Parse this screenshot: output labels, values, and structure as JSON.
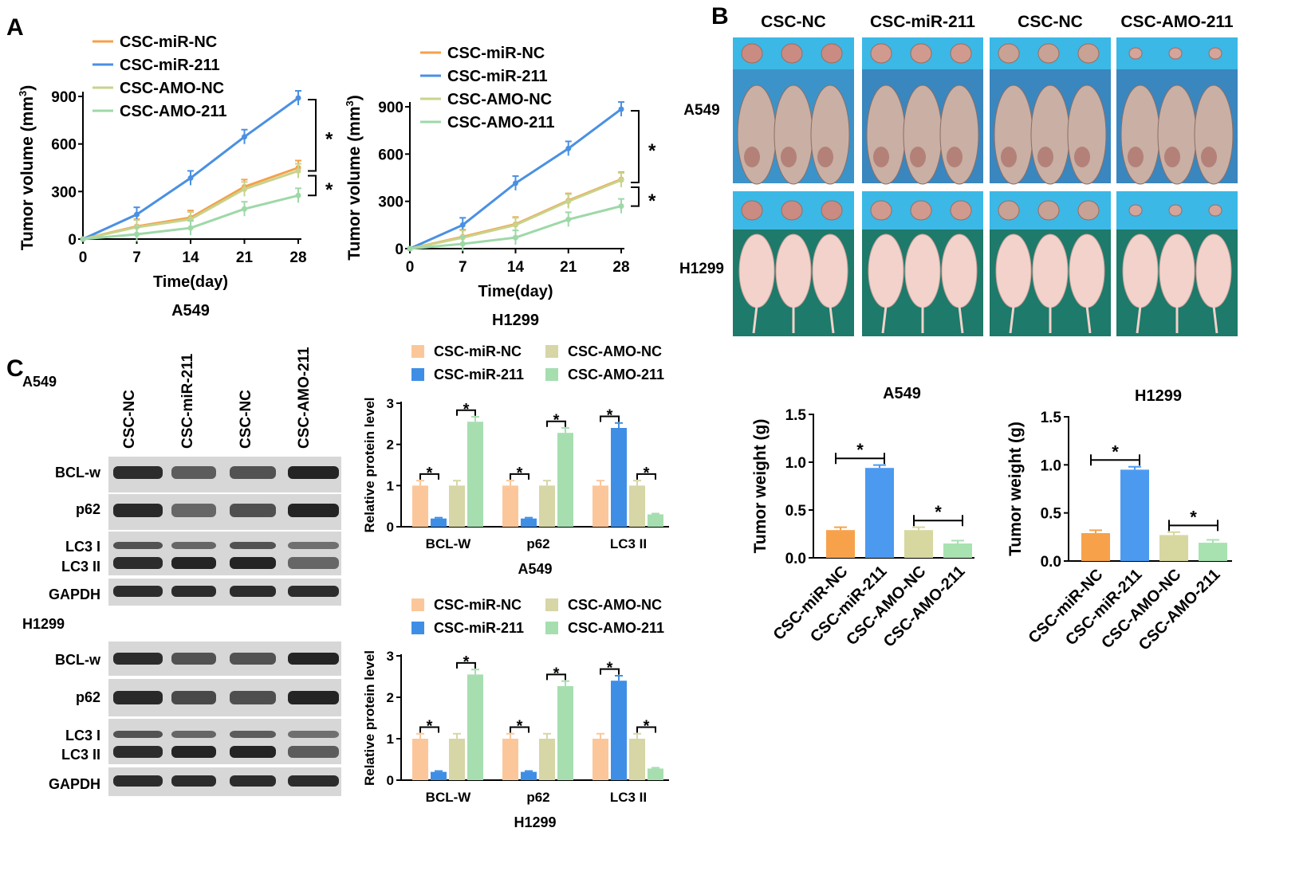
{
  "panels": {
    "a": "A",
    "b": "B",
    "c": "C"
  },
  "colors": {
    "miR_NC": "#F5A04A",
    "miR_211": "#4A90E2",
    "AMO_NC": "#C8D38C",
    "AMO_211": "#9ED8A8",
    "bar_miR_NC": "#FBC79A",
    "bar_miR_211": "#3F8EE6",
    "bar_AMO_NC": "#D6D6A6",
    "bar_AMO_211": "#A6DEB0",
    "weight_miR_NC": "#F7A24A",
    "weight_miR_211": "#4C9AF0",
    "weight_AMO_NC": "#D7D7A0",
    "weight_AMO_211": "#A8E2B0"
  },
  "photo": {
    "groups": [
      "CSC-NC",
      "CSC-miR-211",
      "CSC-NC",
      "CSC-AMO-211"
    ],
    "rows": [
      "A549",
      "H1299"
    ]
  },
  "blot": {
    "lanes": [
      "CSC-NC",
      "CSC-miR-211",
      "CSC-NC",
      "CSC-AMO-211"
    ],
    "panels": [
      {
        "cell": "A549",
        "labels": [
          "BCL-w",
          "p62",
          "LC3 I",
          "LC3 II",
          "GAPDH"
        ]
      },
      {
        "cell": "H1299",
        "labels": [
          "BCL-w",
          "p62",
          "LC3 I",
          "LC3 II",
          "GAPDH"
        ]
      }
    ]
  },
  "chart_data": [
    {
      "type": "line",
      "title": "A549",
      "xlabel": "Time(day)",
      "ylabel": "Tumor volume (mm",
      "ylabel_sup": "3",
      "ylabel_close": ")",
      "x": [
        0,
        7,
        14,
        21,
        28
      ],
      "xlim": [
        0,
        28
      ],
      "ylim": [
        0,
        900
      ],
      "yticks": [
        0,
        300,
        600,
        900
      ],
      "series": [
        {
          "name": "CSC-miR-NC",
          "values": [
            0,
            80,
            135,
            330,
            450
          ]
        },
        {
          "name": "CSC-miR-211",
          "values": [
            0,
            155,
            385,
            645,
            890
          ]
        },
        {
          "name": "CSC-AMO-NC",
          "values": [
            0,
            75,
            125,
            315,
            430
          ]
        },
        {
          "name": "CSC-AMO-211",
          "values": [
            0,
            30,
            70,
            190,
            275
          ]
        }
      ],
      "significance": "*"
    },
    {
      "type": "line",
      "title": "H1299",
      "xlabel": "Time(day)",
      "ylabel": "Tumor volume (mm",
      "ylabel_sup": "3",
      "ylabel_close": ")",
      "x": [
        0,
        7,
        14,
        21,
        28
      ],
      "xlim": [
        0,
        28
      ],
      "ylim": [
        0,
        900
      ],
      "yticks": [
        0,
        300,
        600,
        900
      ],
      "series": [
        {
          "name": "CSC-miR-NC",
          "values": [
            0,
            75,
            155,
            305,
            440
          ]
        },
        {
          "name": "CSC-miR-211",
          "values": [
            0,
            150,
            415,
            635,
            885
          ]
        },
        {
          "name": "CSC-AMO-NC",
          "values": [
            0,
            70,
            150,
            300,
            435
          ]
        },
        {
          "name": "CSC-AMO-211",
          "values": [
            0,
            30,
            70,
            185,
            270
          ]
        }
      ],
      "significance": "*"
    },
    {
      "type": "bar",
      "title": "A549",
      "ylabel": "Relative  protein level",
      "categories": [
        "BCL-W",
        "p62",
        "LC3 II"
      ],
      "ylim": [
        0,
        3
      ],
      "yticks": [
        0,
        1,
        2,
        3
      ],
      "series": [
        {
          "name": "CSC-miR-NC",
          "values": [
            1.0,
            1.0,
            1.0
          ]
        },
        {
          "name": "CSC-miR-211",
          "values": [
            0.2,
            0.2,
            2.4
          ]
        },
        {
          "name": "CSC-AMO-NC",
          "values": [
            1.0,
            1.0,
            1.0
          ]
        },
        {
          "name": "CSC-AMO-211",
          "values": [
            2.55,
            2.28,
            0.3
          ]
        }
      ],
      "significance": "*"
    },
    {
      "type": "bar",
      "title": "H1299",
      "ylabel": "Relative  protein level",
      "categories": [
        "BCL-W",
        "p62",
        "LC3 II"
      ],
      "ylim": [
        0,
        3
      ],
      "yticks": [
        0,
        1,
        2,
        3
      ],
      "series": [
        {
          "name": "CSC-miR-NC",
          "values": [
            1.0,
            1.0,
            1.0
          ]
        },
        {
          "name": "CSC-miR-211",
          "values": [
            0.2,
            0.2,
            2.4
          ]
        },
        {
          "name": "CSC-AMO-NC",
          "values": [
            1.0,
            1.0,
            1.0
          ]
        },
        {
          "name": "CSC-AMO-211",
          "values": [
            2.55,
            2.27,
            0.28
          ]
        }
      ],
      "significance": "*"
    },
    {
      "type": "bar",
      "title": "A549",
      "ylabel": "Tumor weight (g)",
      "categories": [
        "CSC-miR-NC",
        "CSC-miR-211",
        "CSC-AMO-NC",
        "CSC-AMO-211"
      ],
      "values": [
        0.29,
        0.94,
        0.29,
        0.15
      ],
      "ylim": [
        0,
        1.5
      ],
      "yticks": [
        "0.0",
        "0.5",
        "1.0",
        "1.5"
      ],
      "significance": "*"
    },
    {
      "type": "bar",
      "title": "H1299",
      "ylabel": "Tumor weight (g)",
      "categories": [
        "CSC-miR-NC",
        "CSC-miR-211",
        "CSC-AMO-NC",
        "CSC-AMO-211"
      ],
      "values": [
        0.29,
        0.95,
        0.27,
        0.19
      ],
      "ylim": [
        0,
        1.5
      ],
      "yticks": [
        "0.0",
        "0.5",
        "1.0",
        "1.5"
      ],
      "significance": "*"
    }
  ]
}
